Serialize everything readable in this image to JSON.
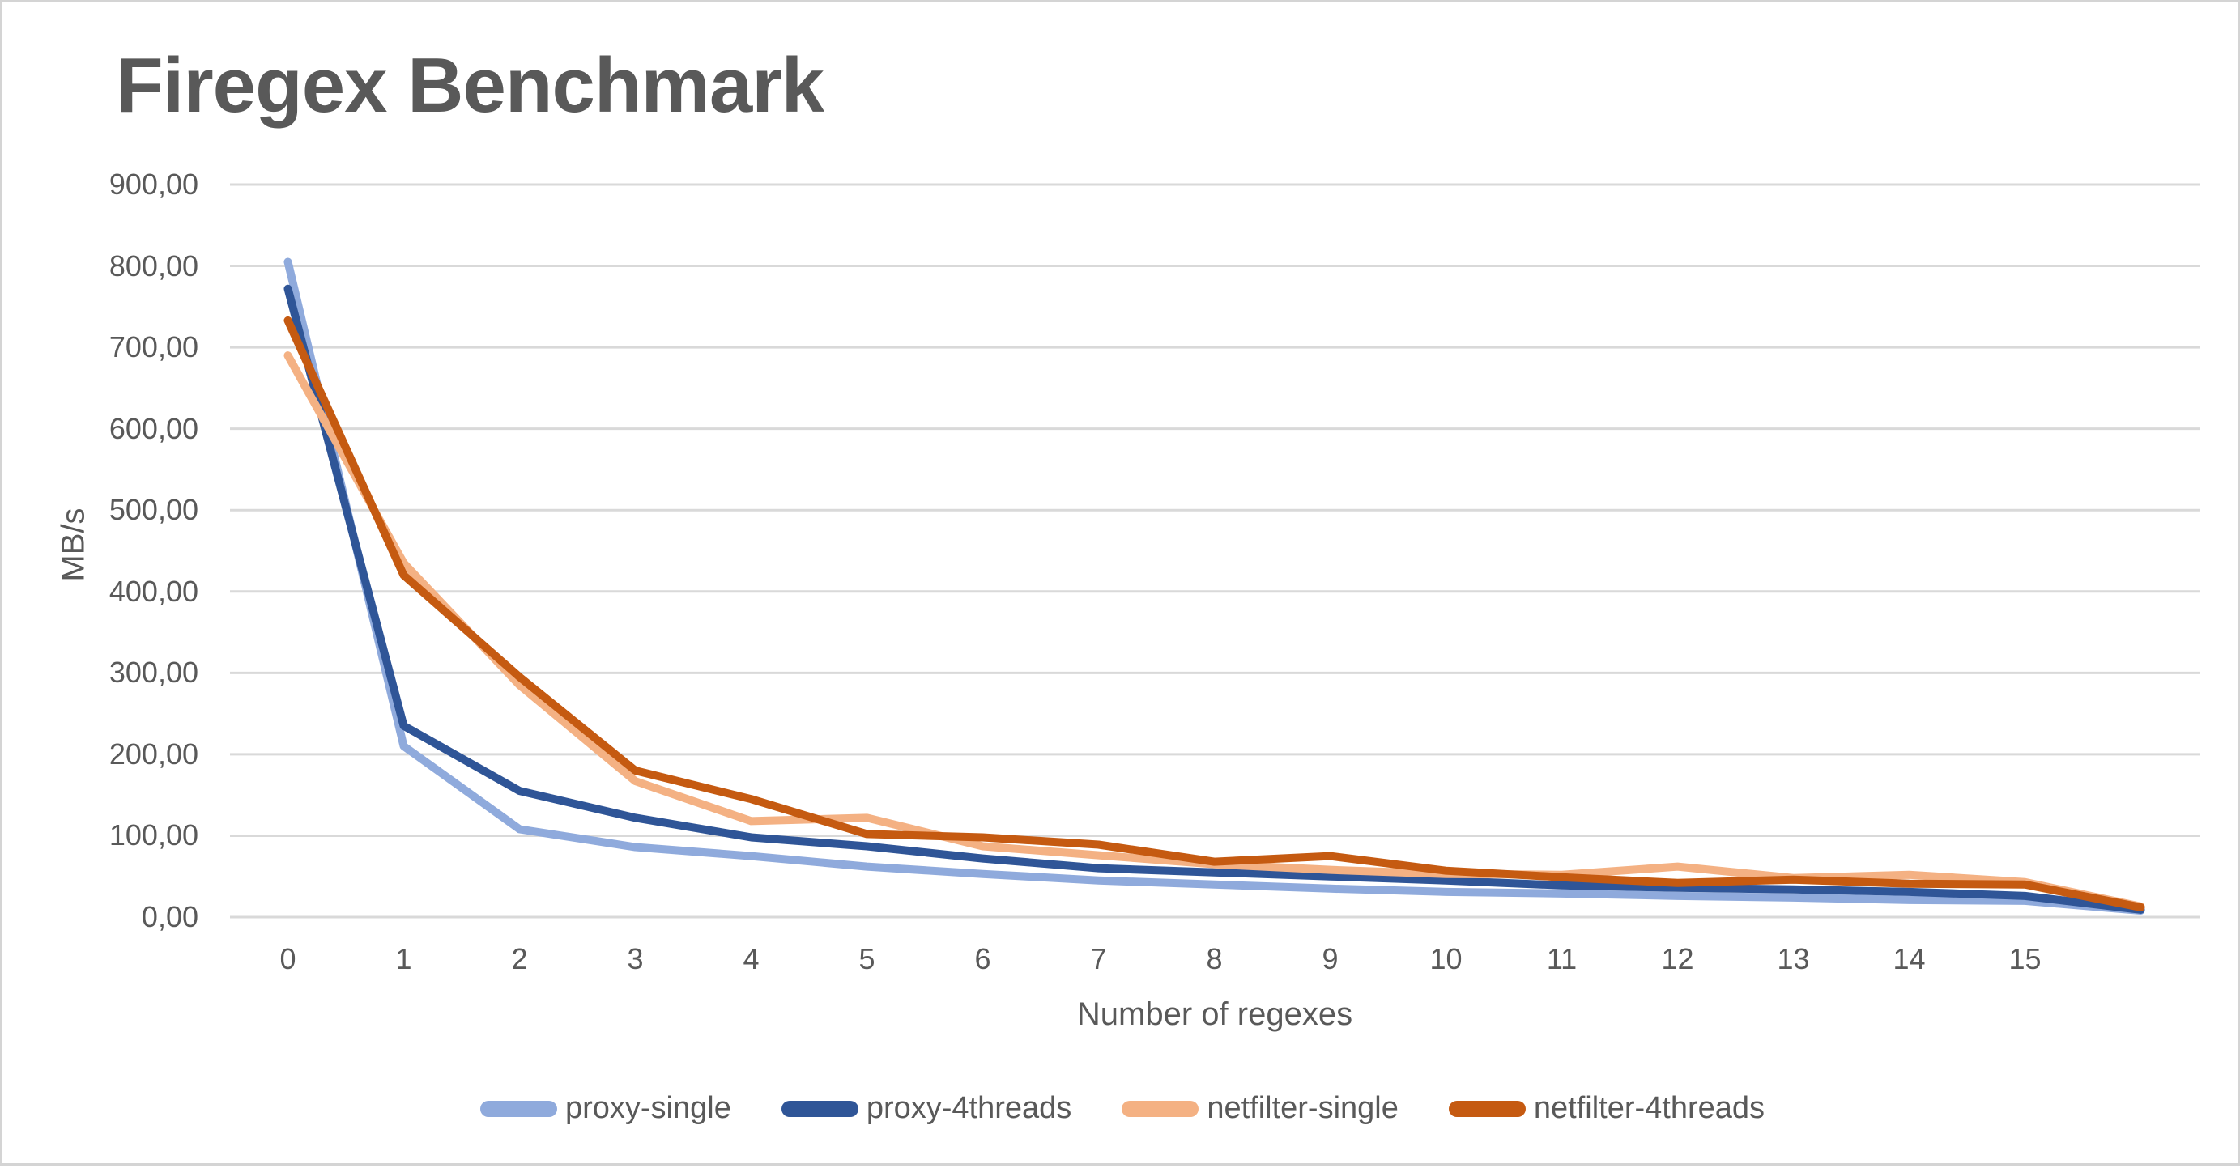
{
  "title": "Firegex Benchmark",
  "colors": {
    "title_text": "#595959",
    "axis_text": "#595959",
    "gridline": "#D9D9D9",
    "page_border": "#D4D4D4"
  },
  "chart_data": {
    "type": "line",
    "title": "Firegex Benchmark",
    "xlabel": "Number of regexes",
    "ylabel": "MB/s",
    "x": [
      0,
      1,
      2,
      3,
      4,
      5,
      6,
      7,
      8,
      9,
      10,
      11,
      12,
      13,
      14,
      15,
      16
    ],
    "x_tick_labels": [
      "0",
      "1",
      "2",
      "3",
      "4",
      "5",
      "6",
      "7",
      "8",
      "9",
      "10",
      "11",
      "12",
      "13",
      "14",
      "15"
    ],
    "y_tick_labels": [
      "900,00",
      "800,00",
      "700,00",
      "600,00",
      "500,00",
      "400,00",
      "300,00",
      "200,00",
      "100,00",
      "0,00"
    ],
    "ylim": [
      0,
      900
    ],
    "y_tick_step": 100,
    "grid": true,
    "legend_position": "bottom",
    "series": [
      {
        "name": "proxy-single",
        "color": "#8FAADC",
        "values": [
          805,
          210,
          108,
          86,
          75,
          62,
          53,
          45,
          40,
          35,
          31,
          29,
          26,
          24,
          21,
          20,
          8
        ]
      },
      {
        "name": "proxy-4threads",
        "color": "#2F5597",
        "values": [
          772,
          235,
          155,
          122,
          98,
          87,
          72,
          60,
          55,
          50,
          45,
          39,
          36,
          34,
          31,
          26,
          9
        ]
      },
      {
        "name": "netfilter-single",
        "color": "#F4B183",
        "values": [
          690,
          435,
          285,
          167,
          118,
          122,
          87,
          76,
          65,
          58,
          53,
          52,
          62,
          48,
          52,
          43,
          13
        ]
      },
      {
        "name": "netfilter-4threads",
        "color": "#C55A11",
        "values": [
          733,
          420,
          295,
          180,
          145,
          102,
          98,
          89,
          68,
          75,
          57,
          49,
          42,
          46,
          41,
          40,
          12
        ]
      }
    ]
  }
}
